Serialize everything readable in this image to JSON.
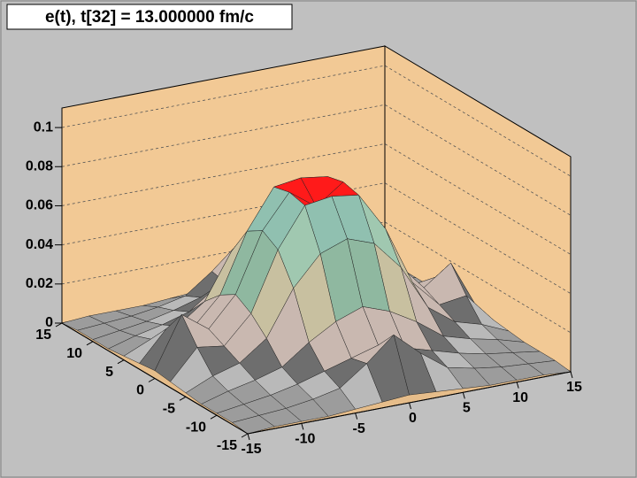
{
  "chart_data": {
    "type": "surface",
    "title": "e(t), t[32] = 13.000000 fm/c",
    "x": [
      -15,
      -12.5,
      -10,
      -7.5,
      -5,
      -2.5,
      0,
      2.5,
      5,
      7.5,
      10,
      12.5,
      15
    ],
    "y": [
      -15,
      -12.5,
      -10,
      -7.5,
      -5,
      -2.5,
      0,
      2.5,
      5,
      7.5,
      10,
      12.5,
      15
    ],
    "z": [
      [
        0,
        0.001,
        0.001,
        0.001,
        0.002,
        0.003,
        0.004,
        0.003,
        0.002,
        0.001,
        0.001,
        0.001,
        0
      ],
      [
        0.001,
        0.002,
        0.003,
        0.005,
        0.008,
        0.018,
        0.03,
        0.018,
        0.008,
        0.005,
        0.003,
        0.002,
        0.001
      ],
      [
        0.001,
        0.003,
        0.005,
        0.008,
        0.012,
        0.016,
        0.02,
        0.016,
        0.012,
        0.008,
        0.005,
        0.003,
        0.001
      ],
      [
        0.001,
        0.005,
        0.008,
        0.012,
        0.022,
        0.03,
        0.035,
        0.03,
        0.022,
        0.012,
        0.008,
        0.005,
        0.001
      ],
      [
        0.002,
        0.008,
        0.012,
        0.022,
        0.045,
        0.06,
        0.065,
        0.06,
        0.045,
        0.022,
        0.012,
        0.008,
        0.002
      ],
      [
        0.003,
        0.018,
        0.016,
        0.03,
        0.06,
        0.08,
        0.082,
        0.08,
        0.06,
        0.03,
        0.016,
        0.018,
        0.003
      ],
      [
        0.004,
        0.03,
        0.02,
        0.035,
        0.065,
        0.082,
        0.072,
        0.082,
        0.065,
        0.035,
        0.02,
        0.03,
        0.004
      ],
      [
        0.003,
        0.018,
        0.016,
        0.03,
        0.06,
        0.08,
        0.082,
        0.08,
        0.06,
        0.03,
        0.016,
        0.018,
        0.003
      ],
      [
        0.002,
        0.008,
        0.012,
        0.022,
        0.045,
        0.06,
        0.065,
        0.06,
        0.045,
        0.022,
        0.012,
        0.008,
        0.002
      ],
      [
        0.001,
        0.005,
        0.008,
        0.012,
        0.022,
        0.03,
        0.035,
        0.03,
        0.022,
        0.012,
        0.008,
        0.005,
        0.001
      ],
      [
        0.001,
        0.003,
        0.005,
        0.008,
        0.012,
        0.016,
        0.02,
        0.016,
        0.012,
        0.008,
        0.005,
        0.003,
        0.001
      ],
      [
        0.001,
        0.002,
        0.003,
        0.005,
        0.008,
        0.018,
        0.03,
        0.018,
        0.008,
        0.005,
        0.003,
        0.002,
        0.001
      ],
      [
        0,
        0.001,
        0.001,
        0.001,
        0.002,
        0.003,
        0.004,
        0.003,
        0.002,
        0.001,
        0.001,
        0.001,
        0
      ]
    ],
    "xlim": [
      -15,
      15
    ],
    "ylim": [
      -15,
      15
    ],
    "zlim": [
      0,
      0.11
    ],
    "xticks": [
      -15,
      -10,
      -5,
      0,
      5,
      10,
      15
    ],
    "yticks": [
      -15,
      -10,
      -5,
      0,
      5,
      10,
      15
    ],
    "zticks": [
      0,
      0.02,
      0.04,
      0.06,
      0.08,
      0.1
    ],
    "wall_color": "#f2c995",
    "grid": true
  }
}
